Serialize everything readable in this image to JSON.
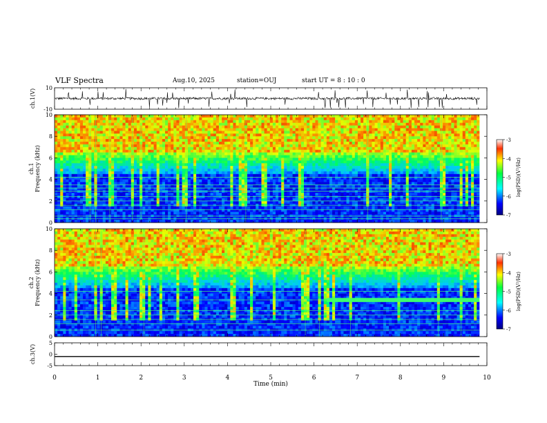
{
  "header": {
    "title": "VLF Spectra",
    "date": "Aug.10, 2025",
    "station": "station=OUJ",
    "start_ut": "start  UT =  8 : 10 : 0"
  },
  "chart_data": [
    {
      "type": "line",
      "panel": "ch1-waveform",
      "ylabel": "ch.1(V)",
      "ylim": [
        -10,
        10
      ],
      "ytick_labels": [
        "10",
        "-10"
      ],
      "baseline": 0,
      "description_values": "noisy waveform around 0 V with sharp spikes"
    },
    {
      "type": "heatmap",
      "panel": "ch1-spectrogram",
      "ylabel": "ch.1\nFrequency (kHz)",
      "ylim": [
        0,
        10
      ],
      "ytick_labels": [
        "0",
        "2",
        "4",
        "6",
        "8",
        "10"
      ],
      "colorbar": {
        "label": "log(PSD)(V²/Hz)",
        "range": [
          -7,
          -3
        ],
        "tick_labels": [
          "-3",
          "-4",
          "-5",
          "-6",
          "-7"
        ]
      },
      "lines_khz": [
        0.35,
        0.6,
        1.2,
        1.6,
        2.0,
        2.4,
        2.9,
        3.2,
        3.5,
        4.2
      ]
    },
    {
      "type": "heatmap",
      "panel": "ch2-spectrogram",
      "ylabel": "ch.2\nFrequency (kHz)",
      "ylim": [
        0,
        10
      ],
      "ytick_labels": [
        "0",
        "2",
        "4",
        "6",
        "8",
        "10"
      ],
      "colorbar": {
        "label": "log(PSD)(V²/Hz)",
        "range": [
          -7,
          -3
        ],
        "tick_labels": [
          "-3",
          "-4",
          "-5",
          "-6",
          "-7"
        ]
      },
      "band_khz_after_6_3min": [
        3.2,
        3.6
      ],
      "lines_khz": [
        0.6,
        1.2,
        1.6,
        2.0,
        2.4,
        3.4,
        4.2
      ]
    },
    {
      "type": "line",
      "panel": "ch3-waveform",
      "ylabel": "ch.3(V)",
      "ylim": [
        -5,
        5
      ],
      "ytick_labels": [
        "5",
        "0",
        "-5"
      ],
      "values": [
        -1,
        -1
      ]
    }
  ],
  "xaxis": {
    "label": "Time (min)",
    "range": [
      0,
      10
    ],
    "tick_labels": [
      "0",
      "1",
      "2",
      "3",
      "4",
      "5",
      "6",
      "7",
      "8",
      "9",
      "10"
    ],
    "data_end_min": 9.83
  }
}
